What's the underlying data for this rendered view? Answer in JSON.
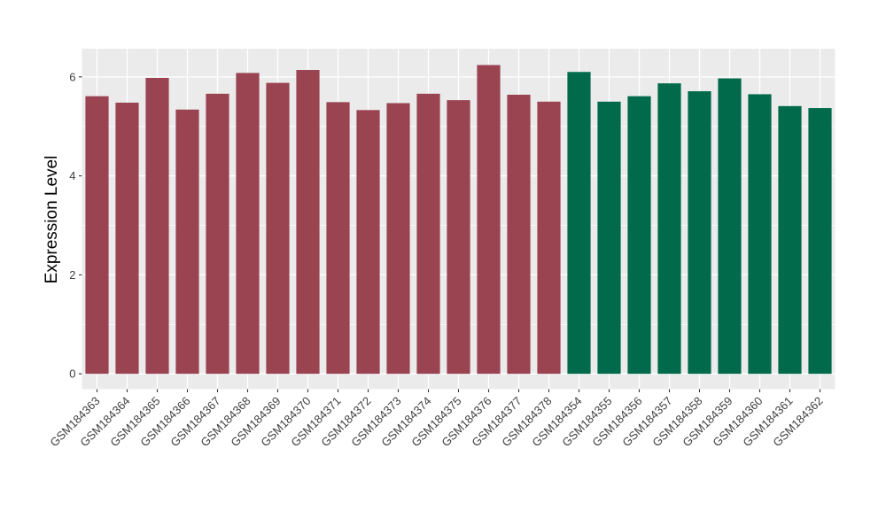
{
  "figure": {
    "background": "#FFFFFF"
  },
  "chart_data": {
    "type": "bar",
    "title": "",
    "xlabel": "",
    "ylabel": "Expression Level",
    "categories": [
      "GSM184363",
      "GSM184364",
      "GSM184365",
      "GSM184366",
      "GSM184367",
      "GSM184368",
      "GSM184369",
      "GSM184370",
      "GSM184371",
      "GSM184372",
      "GSM184373",
      "GSM184374",
      "GSM184375",
      "GSM184376",
      "GSM184377",
      "GSM184378",
      "GSM184354",
      "GSM184355",
      "GSM184356",
      "GSM184357",
      "GSM184358",
      "GSM184359",
      "GSM184360",
      "GSM184361",
      "GSM184362"
    ],
    "values": [
      5.61,
      5.48,
      5.98,
      5.34,
      5.66,
      6.08,
      5.88,
      6.14,
      5.49,
      5.33,
      5.47,
      5.66,
      5.53,
      6.24,
      5.64,
      5.5,
      6.1,
      5.5,
      5.61,
      5.87,
      5.71,
      5.97,
      5.65,
      5.41,
      5.37
    ],
    "groups": [
      "group1",
      "group1",
      "group1",
      "group1",
      "group1",
      "group1",
      "group1",
      "group1",
      "group1",
      "group1",
      "group1",
      "group1",
      "group1",
      "group1",
      "group1",
      "group1",
      "group2",
      "group2",
      "group2",
      "group2",
      "group2",
      "group2",
      "group2",
      "group2",
      "group2"
    ],
    "group_colors": {
      "group1": "#9A4351",
      "group2": "#006A4A"
    },
    "yticks": [
      0,
      2,
      4,
      6
    ],
    "ytick_labels": [
      "0",
      "2",
      "4",
      "6"
    ],
    "yticks_minor": [
      1,
      3,
      5
    ],
    "ylim": [
      -0.31,
      6.57
    ],
    "grid": true,
    "legend": "none",
    "panel_bg": "#EBEBEB",
    "grid_color": "#FFFFFF",
    "tick_color": "#333333",
    "axis_text_color": "#404040",
    "axis_title_color": "#000000",
    "bar_width_ratio": 0.77
  }
}
